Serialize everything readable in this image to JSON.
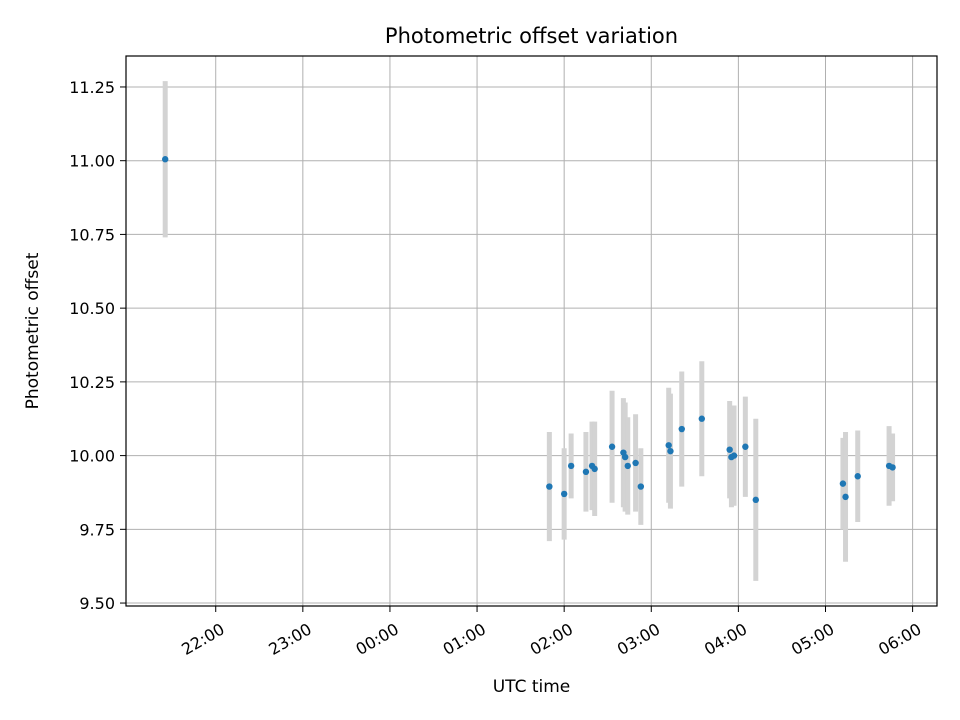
{
  "chart_data": {
    "type": "scatter",
    "title": "Photometric offset variation",
    "xlabel": "UTC time",
    "ylabel": "Photometric offset",
    "x_unit": "UTC hours (values >= 24 are after midnight)",
    "xlim": [
      20.97,
      30.28
    ],
    "ylim": [
      9.49,
      11.355
    ],
    "yticks": [
      9.5,
      9.75,
      10.0,
      10.25,
      10.5,
      10.75,
      11.0,
      11.25
    ],
    "ytick_labels": [
      "9.50",
      "9.75",
      "10.00",
      "10.25",
      "10.50",
      "10.75",
      "11.00",
      "11.25"
    ],
    "xticks": [
      22,
      23,
      24,
      25,
      26,
      27,
      28,
      29,
      30
    ],
    "xtick_labels": [
      "22:00",
      "23:00",
      "00:00",
      "01:00",
      "02:00",
      "03:00",
      "04:00",
      "05:00",
      "06:00"
    ],
    "grid": true,
    "marker_color": "#1f77b4",
    "errorbar_color": "#d3d3d3",
    "points": [
      {
        "x": 21.42,
        "y": 11.005,
        "err": 0.265
      },
      {
        "x": 25.83,
        "y": 9.895,
        "err": 0.185
      },
      {
        "x": 26.0,
        "y": 9.87,
        "err": 0.155
      },
      {
        "x": 26.08,
        "y": 9.965,
        "err": 0.11
      },
      {
        "x": 26.25,
        "y": 9.945,
        "err": 0.135
      },
      {
        "x": 26.32,
        "y": 9.965,
        "err": 0.15
      },
      {
        "x": 26.35,
        "y": 9.955,
        "err": 0.16
      },
      {
        "x": 26.55,
        "y": 10.03,
        "err": 0.19
      },
      {
        "x": 26.68,
        "y": 10.01,
        "err": 0.185
      },
      {
        "x": 26.7,
        "y": 9.995,
        "err": 0.185
      },
      {
        "x": 26.73,
        "y": 9.965,
        "err": 0.165
      },
      {
        "x": 26.82,
        "y": 9.975,
        "err": 0.165
      },
      {
        "x": 26.88,
        "y": 9.895,
        "err": 0.13
      },
      {
        "x": 27.2,
        "y": 10.035,
        "err": 0.195
      },
      {
        "x": 27.22,
        "y": 10.015,
        "err": 0.195
      },
      {
        "x": 27.35,
        "y": 10.09,
        "err": 0.195
      },
      {
        "x": 27.58,
        "y": 10.125,
        "err": 0.195
      },
      {
        "x": 27.9,
        "y": 10.02,
        "err": 0.165
      },
      {
        "x": 27.92,
        "y": 9.995,
        "err": 0.17
      },
      {
        "x": 27.95,
        "y": 10.0,
        "err": 0.17
      },
      {
        "x": 28.08,
        "y": 10.03,
        "err": 0.17
      },
      {
        "x": 28.2,
        "y": 9.85,
        "err": 0.275
      },
      {
        "x": 29.2,
        "y": 9.905,
        "err": 0.155
      },
      {
        "x": 29.23,
        "y": 9.86,
        "err": 0.22
      },
      {
        "x": 29.37,
        "y": 9.93,
        "err": 0.155
      },
      {
        "x": 29.73,
        "y": 9.965,
        "err": 0.135
      },
      {
        "x": 29.77,
        "y": 9.96,
        "err": 0.115
      }
    ]
  }
}
